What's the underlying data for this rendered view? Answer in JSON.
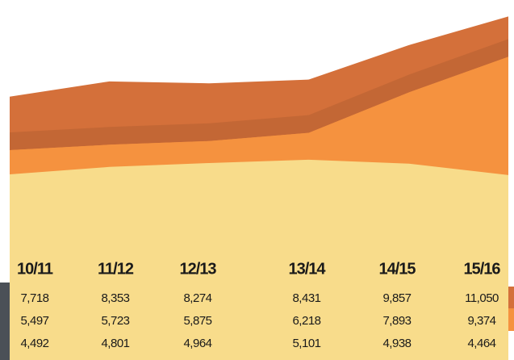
{
  "chart_data": {
    "type": "area",
    "categories": [
      "10/11",
      "11/12",
      "12/13",
      "13/14",
      "14/15",
      "15/16"
    ],
    "series": [
      {
        "color": "#d4703a",
        "values": [
          7718,
          8353,
          8274,
          8431,
          9857,
          11050
        ],
        "value_labels": [
          "7,718",
          "8,353",
          "8,274",
          "8,431",
          "9,857",
          "11,050"
        ]
      },
      {
        "color": "#f5923f",
        "values": [
          5497,
          5723,
          5875,
          6218,
          7893,
          9374
        ],
        "value_labels": [
          "5,497",
          "5,723",
          "5,875",
          "6,218",
          "7,893",
          "9,374"
        ]
      },
      {
        "color": "#f8dc8b",
        "values": [
          4492,
          4801,
          4964,
          5101,
          4938,
          4464
        ],
        "value_labels": [
          "4,492",
          "4,801",
          "4,964",
          "5,101",
          "4,938",
          "4,464"
        ]
      }
    ],
    "ylim": [
      0,
      11500
    ]
  }
}
